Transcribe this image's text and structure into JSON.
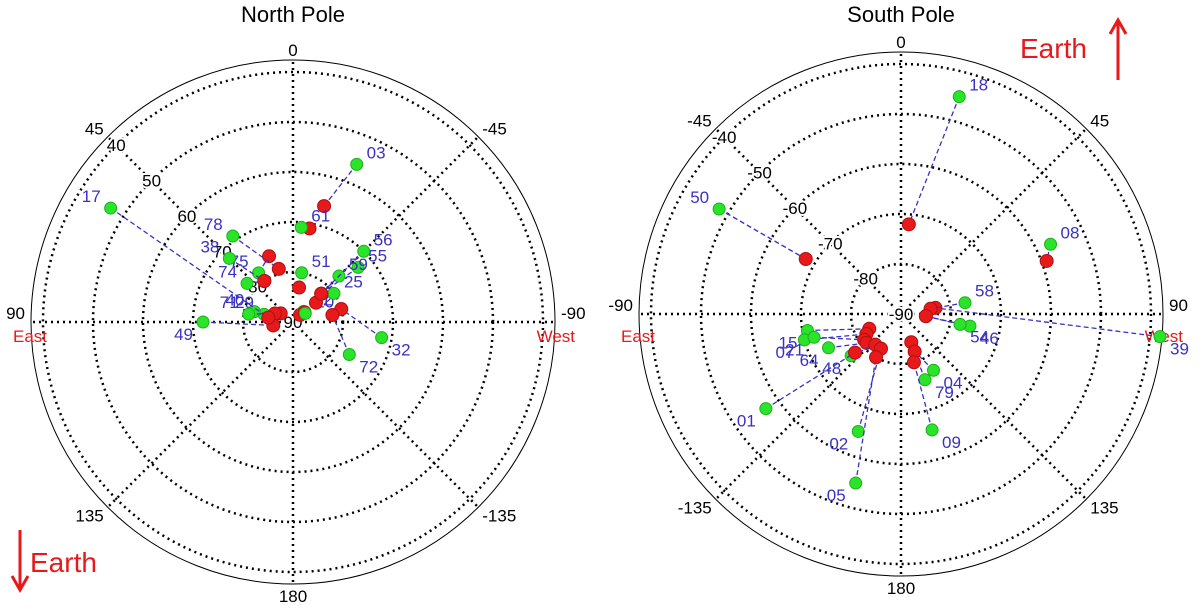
{
  "chart_data": [
    {
      "type": "scatter",
      "panel": "north",
      "title": "North Pole",
      "azimuth_ticks": [
        {
          "value": "180",
          "angle": 180
        },
        {
          "value": "135",
          "angle": 135
        },
        {
          "value": "90",
          "angle": 90
        },
        {
          "value": "45",
          "angle": 45
        },
        {
          "value": "0",
          "angle": 0
        },
        {
          "value": "-45",
          "angle": -45
        },
        {
          "value": "-90",
          "angle": -90
        },
        {
          "value": "-135",
          "angle": -135
        }
      ],
      "latitude_ticks": [
        "90",
        "80",
        "70",
        "60",
        "50",
        "40"
      ],
      "direction_labels": {
        "left": "East",
        "right": "West"
      },
      "earth_label": "Earth",
      "earth_arrow": "down",
      "points": [
        {
          "id": "75",
          "initial": [
            35,
            78
          ],
          "final": [
            20,
            76
          ]
        },
        {
          "id": "29",
          "initial": [
            75,
            84
          ],
          "final": [
            55,
            87
          ]
        },
        {
          "id": "40",
          "initial": [
            75,
            82
          ],
          "final": [
            70,
            86
          ]
        },
        {
          "id": "71",
          "initial": [
            80,
            81
          ],
          "final": [
            65,
            86
          ]
        },
        {
          "id": "49",
          "initial": [
            90,
            72
          ],
          "final": [
            100,
            86
          ]
        },
        {
          "id": "17",
          "initial": [
            58,
            47
          ],
          "final": [
            80,
            85
          ]
        },
        {
          "id": "74",
          "initial": [
            50,
            78
          ],
          "final": [
            35,
            80
          ]
        },
        {
          "id": "38",
          "initial": [
            45,
            72
          ],
          "final": [
            35,
            80
          ]
        },
        {
          "id": "78",
          "initial": [
            35,
            69
          ],
          "final": [
            15,
            79
          ]
        },
        {
          "id": "03",
          "initial": [
            -22,
            56
          ],
          "final": [
            -15,
            66
          ]
        },
        {
          "id": "61",
          "initial": [
            -5,
            71
          ],
          "final": [
            -10,
            71
          ]
        },
        {
          "id": "51",
          "initial": [
            -10,
            80
          ],
          "final": [
            -10,
            83
          ]
        },
        {
          "id": "12",
          "initial": [
            -45,
            87
          ],
          "final": [
            -45,
            88
          ]
        },
        {
          "id": "10",
          "initial": [
            -55,
            87
          ],
          "final": [
            -50,
            87
          ]
        },
        {
          "id": "25",
          "initial": [
            -55,
            80
          ],
          "final": [
            -50,
            84
          ]
        },
        {
          "id": "32",
          "initial": [
            -100,
            72
          ],
          "final": [
            -75,
            80
          ]
        },
        {
          "id": "72",
          "initial": [
            -120,
            77
          ],
          "final": [
            -80,
            82
          ]
        },
        {
          "id": "55",
          "initial": [
            -50,
            73
          ],
          "final": [
            -45,
            82
          ]
        },
        {
          "id": "59",
          "initial": [
            -45,
            77
          ],
          "final": [
            -45,
            82
          ]
        },
        {
          "id": "56",
          "initial": [
            -45,
            70
          ],
          "final": [
            -45,
            82
          ]
        }
      ]
    },
    {
      "type": "scatter",
      "panel": "south",
      "title": "South Pole",
      "azimuth_ticks": [
        {
          "value": "0",
          "angle": 0
        },
        {
          "value": "45",
          "angle": 45
        },
        {
          "value": "90",
          "angle": 90
        },
        {
          "value": "135",
          "angle": 135
        },
        {
          "value": "180",
          "angle": 180
        },
        {
          "value": "-135",
          "angle": -135
        },
        {
          "value": "-90",
          "angle": -90
        },
        {
          "value": "-45",
          "angle": -45
        }
      ],
      "latitude_ticks": [
        "-90",
        "-80",
        "-70",
        "-60",
        "-50",
        "-40"
      ],
      "direction_labels": {
        "left": "East",
        "right": "West"
      },
      "earth_label": "Earth",
      "earth_arrow": "up",
      "points": [
        {
          "id": "18",
          "initial": [
            15,
            -45
          ],
          "final": [
            5,
            -72
          ]
        },
        {
          "id": "50",
          "initial": [
            -60,
            -48
          ],
          "final": [
            -60,
            -68
          ]
        },
        {
          "id": "08",
          "initial": [
            65,
            -57
          ],
          "final": [
            70,
            -59
          ]
        },
        {
          "id": "39",
          "initial": [
            95,
            -38
          ],
          "final": [
            80,
            -83
          ]
        },
        {
          "id": "58",
          "initial": [
            80,
            -77
          ],
          "final": [
            80,
            -84
          ]
        },
        {
          "id": "46",
          "initial": [
            100,
            -76
          ],
          "final": [
            95,
            -85
          ]
        },
        {
          "id": "54",
          "initial": [
            100,
            -78
          ],
          "final": [
            95,
            -85
          ]
        },
        {
          "id": "15",
          "initial": [
            -100,
            -71
          ],
          "final": [
            -115,
            -83
          ]
        },
        {
          "id": "07",
          "initial": [
            -105,
            -70
          ],
          "final": [
            -120,
            -82
          ]
        },
        {
          "id": "21",
          "initial": [
            -105,
            -72
          ],
          "final": [
            -125,
            -81
          ]
        },
        {
          "id": "64",
          "initial": [
            -115,
            -74
          ],
          "final": [
            -130,
            -81
          ]
        },
        {
          "id": "48",
          "initial": [
            -130,
            -77
          ],
          "final": [
            -140,
            -82
          ]
        },
        {
          "id": "01",
          "initial": [
            -125,
            -57
          ],
          "final": [
            -130,
            -78
          ]
        },
        {
          "id": "02",
          "initial": [
            -160,
            -65
          ],
          "final": [
            -150,
            -82
          ]
        },
        {
          "id": "05",
          "initial": [
            -165,
            -55
          ],
          "final": [
            -150,
            -80
          ]
        },
        {
          "id": "79",
          "initial": [
            160,
            -76
          ],
          "final": [
            160,
            -84
          ]
        },
        {
          "id": "04",
          "initial": [
            150,
            -77
          ],
          "final": [
            160,
            -82
          ]
        },
        {
          "id": "09",
          "initial": [
            165,
            -66
          ],
          "final": [
            165,
            -80
          ]
        }
      ]
    }
  ]
}
